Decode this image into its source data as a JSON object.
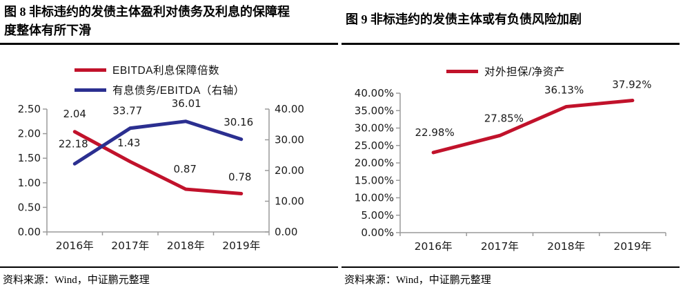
{
  "figure8": {
    "title": "图 8  非标违约的发债主体盈利对债务及利息的保障程度整体有所下滑",
    "source": "资料来源：Wind，中证鹏元整理"
  },
  "figure9": {
    "title": "图 9  非标违约的发债主体或有负债风险加剧",
    "source": "资料来源：Wind，中证鹏元整理"
  },
  "chart_data": [
    {
      "type": "line",
      "title": "非标违约的发债主体盈利对债务及利息的保障程度整体有所下滑",
      "categories": [
        "2016年",
        "2017年",
        "2018年",
        "2019年"
      ],
      "series": [
        {
          "name": "EBITDA利息保障倍数",
          "color": "#C1122B",
          "axis": "left",
          "values": [
            2.04,
            1.43,
            0.87,
            0.78
          ],
          "labels": [
            "2.04",
            "1.43",
            "0.87",
            "0.78"
          ]
        },
        {
          "name": "有息债务/EBITDA（右轴）",
          "color": "#2B2F90",
          "axis": "right",
          "values": [
            22.18,
            33.77,
            36.01,
            30.16
          ],
          "labels": [
            "22.18",
            "33.77",
            "36.01",
            "30.16"
          ]
        }
      ],
      "left_axis": {
        "min": 0,
        "max": 2.5,
        "ticks": [
          "2.50",
          "2.00",
          "1.50",
          "1.00",
          "0.50",
          "0.00"
        ]
      },
      "right_axis": {
        "min": 0,
        "max": 40,
        "ticks": [
          "40.00",
          "30.00",
          "20.00",
          "10.00",
          "0.00"
        ]
      },
      "legend_position": "top",
      "grid": false
    },
    {
      "type": "line",
      "title": "非标违约的发债主体或有负债风险加剧",
      "categories": [
        "2016年",
        "2017年",
        "2018年",
        "2019年"
      ],
      "series": [
        {
          "name": "对外担保/净资产",
          "color": "#C1122B",
          "axis": "left",
          "values": [
            22.98,
            27.85,
            36.13,
            37.92
          ],
          "labels": [
            "22.98%",
            "27.85%",
            "36.13%",
            "37.92%"
          ]
        }
      ],
      "left_axis": {
        "min": 0,
        "max": 40,
        "ticks": [
          "40.00%",
          "35.00%",
          "30.00%",
          "25.00%",
          "20.00%",
          "15.00%",
          "10.00%",
          "5.00%",
          "0.00%"
        ]
      },
      "legend_position": "top",
      "grid": false
    }
  ]
}
